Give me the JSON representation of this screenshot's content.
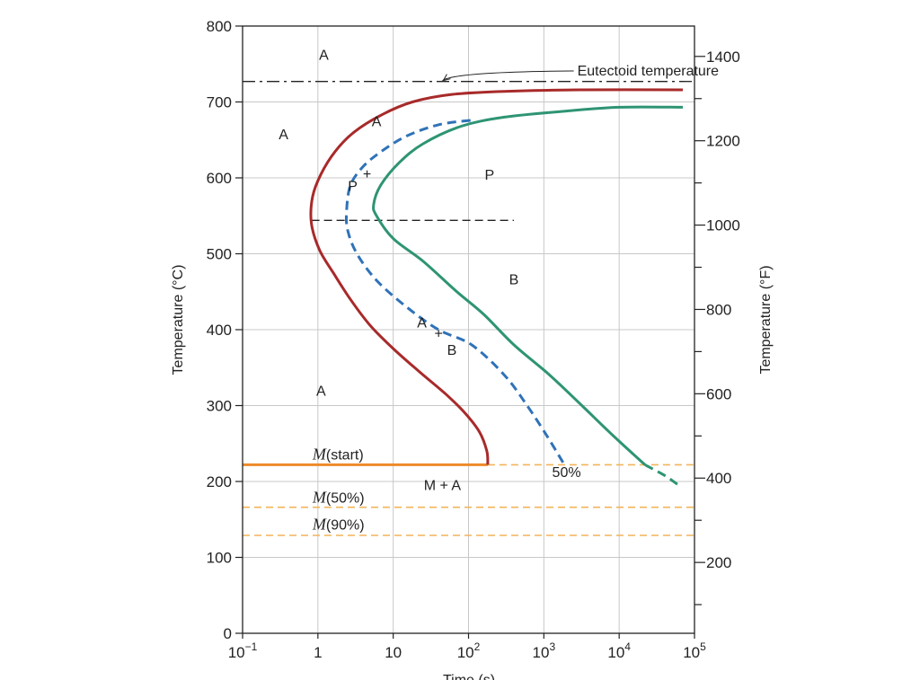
{
  "chart_data": {
    "type": "line",
    "title": "",
    "xlabel": "Time (s)",
    "ylabel": "Temperature (°C)",
    "ylabel_right": "Temperature (°F)",
    "x_scale": "log",
    "xlim": [
      0.1,
      100000
    ],
    "ylim": [
      0,
      800
    ],
    "grid": true,
    "x_ticks": [
      {
        "value": 0.1,
        "base": "10",
        "exp": "−1"
      },
      {
        "value": 1,
        "base": "1",
        "exp": ""
      },
      {
        "value": 10,
        "base": "10",
        "exp": ""
      },
      {
        "value": 100,
        "base": "10",
        "exp": "2"
      },
      {
        "value": 1000,
        "base": "10",
        "exp": "3"
      },
      {
        "value": 10000,
        "base": "10",
        "exp": "4"
      },
      {
        "value": 100000,
        "base": "10",
        "exp": "5"
      }
    ],
    "y_ticks": [
      "0",
      "100",
      "200",
      "300",
      "400",
      "500",
      "600",
      "700",
      "800"
    ],
    "y_right_ticks": [
      {
        "label": "200",
        "f": 200
      },
      {
        "label": "400",
        "f": 400
      },
      {
        "label": "600",
        "f": 600
      },
      {
        "label": "800",
        "f": 800
      },
      {
        "label": "1000",
        "f": 1000
      },
      {
        "label": "1200",
        "f": 1200
      },
      {
        "label": "1400",
        "f": 1400
      }
    ],
    "colors": {
      "start": "#a82a2a",
      "finish": "#2e9474",
      "fifty": "#2f72b8",
      "martensite": "#ee8a2a",
      "martensite_dashed": "#f2b45a",
      "grid": "#c8c8c8"
    },
    "series": [
      {
        "key": "start",
        "style": "solid",
        "points": [
          [
            180,
            222
          ],
          [
            175,
            240
          ],
          [
            140,
            265
          ],
          [
            90,
            290
          ],
          [
            50,
            315
          ],
          [
            22,
            345
          ],
          [
            10,
            375
          ],
          [
            5,
            405
          ],
          [
            2.7,
            440
          ],
          [
            1.6,
            475
          ],
          [
            1.05,
            505
          ],
          [
            0.82,
            540
          ],
          [
            0.85,
            575
          ],
          [
            1.1,
            605
          ],
          [
            1.7,
            635
          ],
          [
            3,
            660
          ],
          [
            7,
            683
          ],
          [
            18,
            700
          ],
          [
            60,
            710
          ],
          [
            300,
            714
          ],
          [
            3000,
            716
          ],
          [
            70000,
            716
          ]
        ]
      },
      {
        "key": "fifty",
        "style": "dashed",
        "points": [
          [
            1800,
            225
          ],
          [
            1100,
            260
          ],
          [
            600,
            300
          ],
          [
            300,
            340
          ],
          [
            110,
            380
          ],
          [
            40,
            400
          ],
          [
            15,
            430
          ],
          [
            6,
            465
          ],
          [
            3.3,
            500
          ],
          [
            2.5,
            530
          ],
          [
            2.4,
            555
          ],
          [
            2.7,
            590
          ],
          [
            4,
            615
          ],
          [
            7,
            635
          ],
          [
            15,
            655
          ],
          [
            40,
            670
          ],
          [
            110,
            676
          ]
        ]
      },
      {
        "key": "finish",
        "style": "solid",
        "points": [
          [
            22000,
            222
          ],
          [
            8000,
            262
          ],
          [
            3200,
            300
          ],
          [
            1200,
            340
          ],
          [
            400,
            380
          ],
          [
            160,
            420
          ],
          [
            70,
            450
          ],
          [
            25,
            490
          ],
          [
            10,
            520
          ],
          [
            6,
            550
          ],
          [
            5.5,
            565
          ],
          [
            6.8,
            590
          ],
          [
            12,
            620
          ],
          [
            25,
            645
          ],
          [
            80,
            668
          ],
          [
            300,
            680
          ],
          [
            2000,
            688
          ],
          [
            10000,
            693
          ],
          [
            70000,
            693
          ]
        ]
      },
      {
        "key": "finish_tail",
        "style": "dashed",
        "points": [
          [
            22000,
            222
          ],
          [
            40000,
            208
          ],
          [
            60000,
            196
          ]
        ]
      }
    ],
    "horizontal_lines": [
      {
        "key": "eutectoid",
        "y": 727,
        "x_from": 0.1,
        "x_to": 100000,
        "style": "dashdot"
      },
      {
        "key": "nose",
        "y": 544,
        "x_from": 0.82,
        "x_to": 400,
        "style": "dashed"
      },
      {
        "key": "m-start",
        "y": 222,
        "x_from": 0.1,
        "x_to": 180,
        "style": "solid-thick"
      },
      {
        "key": "m-start-ext",
        "y": 222,
        "x_from": 180,
        "x_to": 100000,
        "style": "dashed"
      },
      {
        "key": "m-50",
        "y": 166,
        "x_from": 0.1,
        "x_to": 100000,
        "style": "dashed"
      },
      {
        "key": "m-90",
        "y": 129,
        "x_from": 0.1,
        "x_to": 100000,
        "style": "dashed"
      }
    ],
    "annotations": [
      {
        "text": "A",
        "x": 1.2,
        "y": 763,
        "name": "region-a-top"
      },
      {
        "text": "A",
        "x": 0.35,
        "y": 658,
        "name": "region-a-left"
      },
      {
        "text": "A",
        "x": 1.1,
        "y": 320,
        "name": "region-a-lower"
      },
      {
        "text": "A",
        "x": 6,
        "y": 675,
        "name": "region-a-upper-dashed"
      },
      {
        "text": "+",
        "x": 4.5,
        "y": 606,
        "name": "plus-upper"
      },
      {
        "text": "P",
        "x": 2.9,
        "y": 590,
        "name": "region-p-upper-dashed"
      },
      {
        "text": "P",
        "x": 190,
        "y": 605,
        "name": "region-p"
      },
      {
        "text": "B",
        "x": 400,
        "y": 467,
        "name": "region-b"
      },
      {
        "text": "A",
        "x": 24,
        "y": 410,
        "name": "region-a-mid-dashed"
      },
      {
        "text": "+",
        "x": 40,
        "y": 396,
        "name": "plus-lower"
      },
      {
        "text": "B",
        "x": 60,
        "y": 374,
        "name": "region-b-mid-dashed"
      },
      {
        "text": "M + A",
        "x": 45,
        "y": 196,
        "name": "region-m-plus-a"
      },
      {
        "text": "50%",
        "x": 2000,
        "y": 213,
        "name": "label-50-percent"
      }
    ],
    "eutectoid_label": {
      "text": "Eutectoid temperature",
      "x": 480,
      "y": 742,
      "arrow_to_x": 45,
      "arrow_to_y": 727
    },
    "martensite_labels": [
      {
        "sym": "M",
        "text": "(start)",
        "x": 0.85,
        "y": 236
      },
      {
        "sym": "M",
        "text": "(50%)",
        "x": 0.85,
        "y": 179
      },
      {
        "sym": "M",
        "text": "(90%)",
        "x": 0.85,
        "y": 144
      }
    ]
  }
}
